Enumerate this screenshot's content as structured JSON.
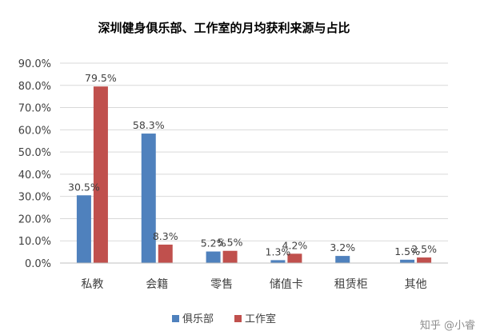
{
  "chart_data": {
    "type": "bar",
    "title": "深圳健身俱乐部、工作室的月均获利来源与占比",
    "categories": [
      "私教",
      "会籍",
      "零售",
      "储值卡",
      "租赁柜",
      "其他"
    ],
    "series": [
      {
        "name": "俱乐部",
        "values": [
          30.5,
          58.3,
          5.2,
          1.3,
          3.2,
          1.5
        ],
        "labels": [
          "30.5%",
          "58.3%",
          "5.2%",
          "1.3%",
          "3.2%",
          "1.5%"
        ]
      },
      {
        "name": "工作室",
        "values": [
          79.5,
          8.3,
          5.5,
          4.2,
          null,
          2.5
        ],
        "labels": [
          "79.5%",
          "8.3%",
          "5.5%",
          "4.2%",
          "",
          "2.5%"
        ]
      }
    ],
    "yticks": [
      "0.0%",
      "10.0%",
      "20.0%",
      "30.0%",
      "40.0%",
      "50.0%",
      "60.0%",
      "70.0%",
      "80.0%",
      "90.0%"
    ],
    "ylim": [
      0,
      90
    ],
    "grid": true,
    "legend_position": "bottom-center",
    "colors": {
      "series_0": "#4f81bd",
      "series_1": "#c0504d",
      "grid": "#d9d9d9"
    }
  },
  "watermark": "知乎 @小睿"
}
